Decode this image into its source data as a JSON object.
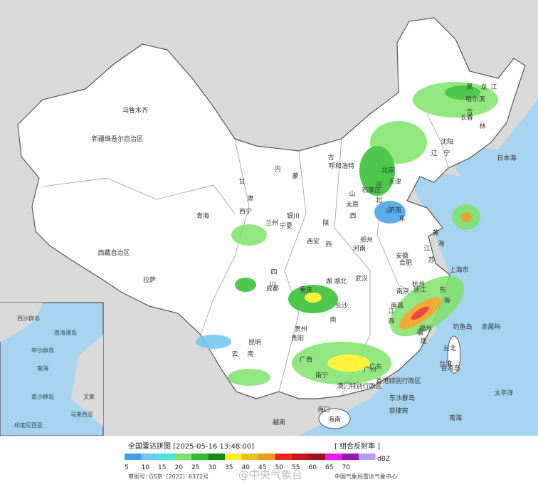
{
  "map": {
    "labels": [
      "新疆维吾尔自治区",
      "乌鲁木齐",
      "西藏自治区",
      "拉萨",
      "青海",
      "西宁",
      "甘",
      "肃",
      "兰州",
      "内",
      "蒙",
      "古",
      "呼和浩特",
      "宁夏",
      "银川",
      "陕",
      "西",
      "西安",
      "山",
      "西",
      "太原",
      "河",
      "北",
      "石家庄",
      "北京",
      "天津",
      "山",
      "东",
      "济南",
      "河南",
      "郑州",
      "湖北",
      "武汉",
      "湖",
      "南",
      "长沙",
      "四",
      "川",
      "成都",
      "重庆",
      "贵州",
      "贵阳",
      "云",
      "南",
      "昆明",
      "广西",
      "南宁",
      "广东",
      "广州",
      "香港特别行政区",
      "澳门特别行政区",
      "海口",
      "海南",
      "福",
      "建",
      "福州",
      "台北",
      "台湾",
      "江",
      "西",
      "南昌",
      "浙江",
      "杭州",
      "上海市",
      "江",
      "苏",
      "南京",
      "安徽",
      "合肥",
      "辽",
      "宁",
      "沈阳",
      "吉",
      "林",
      "长春",
      "黑",
      "龙",
      "江",
      "哈尔滨",
      "日本海",
      "黄",
      "海",
      "东",
      "海",
      "太平洋",
      "钓鱼岛",
      "赤尾屿",
      "台湾岛",
      "东沙群岛",
      "南海",
      "越南",
      "菲律宾"
    ],
    "inset_labels": [
      "南海",
      "南海诸岛",
      "西沙群岛",
      "中沙群岛",
      "南沙群岛",
      "马来西亚",
      "文莱",
      "印度尼西亚"
    ]
  },
  "footer": {
    "title": "全国雷达拼图 [2025-05-16 13:48:00]",
    "product": "[ 组合反射率 ]",
    "unit": "dBZ",
    "scale": [
      {
        "label": "5",
        "color": "#3fa0e8"
      },
      {
        "label": "10",
        "color": "#6ec7f0"
      },
      {
        "label": "15",
        "color": "#44e8e0"
      },
      {
        "label": "20",
        "color": "#7fe36a"
      },
      {
        "label": "25",
        "color": "#2ebf2e"
      },
      {
        "label": "30",
        "color": "#138a13"
      },
      {
        "label": "35",
        "color": "#fff21a"
      },
      {
        "label": "40",
        "color": "#e6c31a"
      },
      {
        "label": "45",
        "color": "#f39a16"
      },
      {
        "label": "50",
        "color": "#f22222"
      },
      {
        "label": "55",
        "color": "#c8141e"
      },
      {
        "label": "60",
        "color": "#a0101a"
      },
      {
        "label": "65",
        "color": "#f01af0"
      },
      {
        "label": "70",
        "color": "#9618b0"
      },
      {
        "label": "",
        "color": "#b49cf0"
      }
    ],
    "approval": "审图号: GS京（2022）6372号",
    "watermark": "@中央气象台",
    "credit": "中国气象局雷达气象中心"
  }
}
